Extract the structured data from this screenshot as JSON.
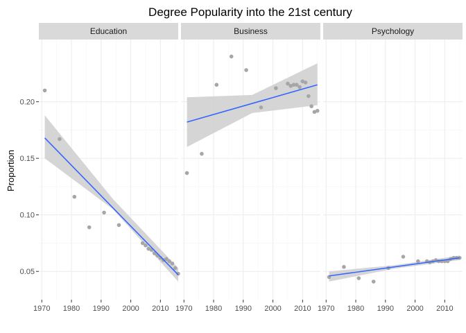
{
  "chart_data": {
    "type": "scatter",
    "title": "Degree Popularity into the 21st century",
    "xlabel": "",
    "ylabel": "Proportion",
    "xlim": [
      1969,
      2016
    ],
    "ylim": [
      0.025,
      0.255
    ],
    "x_ticks": [
      1970,
      1980,
      1990,
      2000,
      2010
    ],
    "y_ticks": [
      0.05,
      0.1,
      0.15,
      0.2
    ],
    "y_tick_labels": [
      "0.05",
      "0.10",
      "0.15",
      "0.20"
    ],
    "grid": true,
    "colors": {
      "point": "#a6a6a6",
      "fit_line": "#3366ff",
      "ribbon": "#d3d3d3",
      "strip": "#d9d9d9",
      "grid_major": "#ebebeb",
      "grid_minor": "#f5f5f5"
    },
    "panels": [
      {
        "name": "Education",
        "points": [
          {
            "x": 1971,
            "y": 0.21
          },
          {
            "x": 1976,
            "y": 0.167
          },
          {
            "x": 1981,
            "y": 0.116
          },
          {
            "x": 1986,
            "y": 0.089
          },
          {
            "x": 1991,
            "y": 0.102
          },
          {
            "x": 1996,
            "y": 0.091
          },
          {
            "x": 2004,
            "y": 0.075
          },
          {
            "x": 2005,
            "y": 0.073
          },
          {
            "x": 2006,
            "y": 0.07
          },
          {
            "x": 2007,
            "y": 0.069
          },
          {
            "x": 2008,
            "y": 0.066
          },
          {
            "x": 2009,
            "y": 0.064
          },
          {
            "x": 2010,
            "y": 0.062
          },
          {
            "x": 2011,
            "y": 0.06
          },
          {
            "x": 2012,
            "y": 0.061
          },
          {
            "x": 2013,
            "y": 0.059
          },
          {
            "x": 2014,
            "y": 0.057
          },
          {
            "x": 2015,
            "y": 0.053
          },
          {
            "x": 2016,
            "y": 0.048
          }
        ],
        "fit": {
          "x": [
            1971,
            2016
          ],
          "y": [
            0.168,
            0.047
          ]
        },
        "band": {
          "x": [
            1971,
            1994,
            2016
          ],
          "lower": [
            0.15,
            0.105,
            0.041
          ],
          "upper": [
            0.188,
            0.114,
            0.053
          ]
        }
      },
      {
        "name": "Business",
        "points": [
          {
            "x": 1971,
            "y": 0.137
          },
          {
            "x": 1976,
            "y": 0.154
          },
          {
            "x": 1981,
            "y": 0.215
          },
          {
            "x": 1986,
            "y": 0.24
          },
          {
            "x": 1991,
            "y": 0.228
          },
          {
            "x": 1996,
            "y": 0.195
          },
          {
            "x": 2001,
            "y": 0.212
          },
          {
            "x": 2005,
            "y": 0.216
          },
          {
            "x": 2006,
            "y": 0.214
          },
          {
            "x": 2007,
            "y": 0.215
          },
          {
            "x": 2008,
            "y": 0.215
          },
          {
            "x": 2009,
            "y": 0.213
          },
          {
            "x": 2010,
            "y": 0.218
          },
          {
            "x": 2011,
            "y": 0.217
          },
          {
            "x": 2012,
            "y": 0.205
          },
          {
            "x": 2013,
            "y": 0.196
          },
          {
            "x": 2014,
            "y": 0.191
          },
          {
            "x": 2015,
            "y": 0.192
          }
        ],
        "fit": {
          "x": [
            1971,
            2015
          ],
          "y": [
            0.182,
            0.215
          ]
        },
        "band": {
          "x": [
            1971,
            1993,
            2015
          ],
          "lower": [
            0.16,
            0.19,
            0.197
          ],
          "upper": [
            0.204,
            0.206,
            0.234
          ]
        }
      },
      {
        "name": "Psychology",
        "points": [
          {
            "x": 1971,
            "y": 0.045
          },
          {
            "x": 1976,
            "y": 0.054
          },
          {
            "x": 1981,
            "y": 0.044
          },
          {
            "x": 1986,
            "y": 0.041
          },
          {
            "x": 1991,
            "y": 0.053
          },
          {
            "x": 1996,
            "y": 0.063
          },
          {
            "x": 2001,
            "y": 0.059
          },
          {
            "x": 2004,
            "y": 0.059
          },
          {
            "x": 2005,
            "y": 0.058
          },
          {
            "x": 2006,
            "y": 0.059
          },
          {
            "x": 2007,
            "y": 0.06
          },
          {
            "x": 2008,
            "y": 0.059
          },
          {
            "x": 2009,
            "y": 0.059
          },
          {
            "x": 2010,
            "y": 0.059
          },
          {
            "x": 2011,
            "y": 0.059
          },
          {
            "x": 2012,
            "y": 0.061
          },
          {
            "x": 2013,
            "y": 0.062
          },
          {
            "x": 2014,
            "y": 0.062
          },
          {
            "x": 2015,
            "y": 0.062
          }
        ],
        "fit": {
          "x": [
            1971,
            2015
          ],
          "y": [
            0.046,
            0.062
          ]
        },
        "band": {
          "x": [
            1971,
            1993,
            2015
          ],
          "lower": [
            0.041,
            0.0525,
            0.06
          ],
          "upper": [
            0.05,
            0.0555,
            0.064
          ]
        }
      }
    ]
  }
}
